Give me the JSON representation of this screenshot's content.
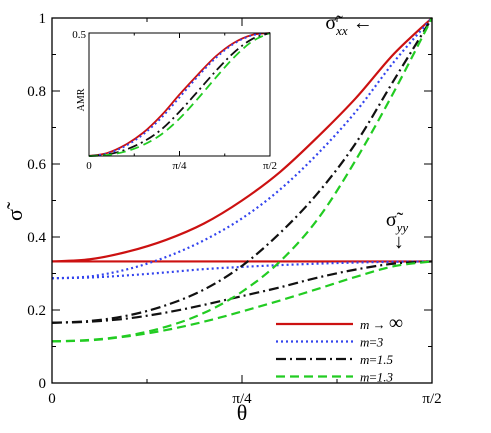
{
  "chart_data": [
    {
      "type": "line",
      "xlabel": "θ",
      "ylabel": "σ̃",
      "xlim": [
        0,
        1.5708
      ],
      "ylim": [
        0,
        1
      ],
      "x_ticks": [
        {
          "value": 0,
          "label": "0"
        },
        {
          "value": 0.7854,
          "label": "π/4"
        },
        {
          "value": 1.5708,
          "label": "π/2"
        }
      ],
      "y_ticks": [
        {
          "value": 0,
          "label": "0"
        },
        {
          "value": 0.2,
          "label": "0.2"
        },
        {
          "value": 0.4,
          "label": "0.4"
        },
        {
          "value": 0.6,
          "label": "0.6"
        },
        {
          "value": 0.8,
          "label": "0.8"
        },
        {
          "value": 1,
          "label": "1"
        }
      ],
      "grid": false,
      "legend_position": "bottom-right",
      "annotations": [
        {
          "text": "σ̃xx ←",
          "base": "σ̃",
          "sub": "xx",
          "arrow": "←",
          "x": 1.13,
          "y": 0.97
        },
        {
          "text": "σ̃yy ↓",
          "base": "σ̃",
          "sub": "yy",
          "arrow": "↓",
          "x": 1.38,
          "y": 0.43
        }
      ],
      "series": [
        {
          "name": "m → ∞",
          "name_base": "m",
          "name_value": "∞",
          "name_sep": " → ",
          "color": "#cc1111",
          "dash": "solid",
          "group": "xx",
          "x": [
            0,
            0.1571,
            0.3142,
            0.4712,
            0.6283,
            0.7854,
            0.9425,
            1.0996,
            1.2566,
            1.4137,
            1.5708
          ],
          "y": [
            0.333,
            0.339,
            0.36,
            0.392,
            0.437,
            0.5,
            0.578,
            0.675,
            0.781,
            0.902,
            1.0
          ]
        },
        {
          "name": "m → ∞",
          "name_base": "m",
          "name_value": "∞",
          "name_sep": " → ",
          "color": "#cc1111",
          "dash": "solid",
          "group": "yy",
          "x": [
            0,
            0.1571,
            0.3142,
            0.4712,
            0.6283,
            0.7854,
            0.9425,
            1.0996,
            1.2566,
            1.4137,
            1.5708
          ],
          "y": [
            0.333,
            0.333,
            0.333,
            0.333,
            0.333,
            0.333,
            0.333,
            0.333,
            0.333,
            0.333,
            0.333
          ]
        },
        {
          "name": "m=3",
          "name_base": "m",
          "name_value": "3",
          "name_sep": "=",
          "color": "#3344ee",
          "dash": "dot",
          "group": "xx",
          "x": [
            0,
            0.1571,
            0.3142,
            0.4712,
            0.6283,
            0.7854,
            0.9425,
            1.0996,
            1.2566,
            1.4137,
            1.5708
          ],
          "y": [
            0.287,
            0.292,
            0.312,
            0.345,
            0.391,
            0.451,
            0.53,
            0.629,
            0.744,
            0.88,
            1.0
          ]
        },
        {
          "name": "m=3",
          "name_base": "m",
          "name_value": "3",
          "name_sep": "=",
          "color": "#3344ee",
          "dash": "dot",
          "group": "yy",
          "x": [
            0,
            0.1571,
            0.3142,
            0.4712,
            0.6283,
            0.7854,
            0.9425,
            1.0996,
            1.2566,
            1.4137,
            1.5708
          ],
          "y": [
            0.287,
            0.289,
            0.295,
            0.303,
            0.312,
            0.318,
            0.323,
            0.327,
            0.33,
            0.332,
            0.333
          ]
        },
        {
          "name": "m=1.5",
          "name_base": "m",
          "name_value": "1.5",
          "name_sep": "=",
          "color": "#111111",
          "dash": "dashdot",
          "group": "xx",
          "x": [
            0,
            0.1571,
            0.3142,
            0.4712,
            0.6283,
            0.7854,
            0.9425,
            1.0996,
            1.2566,
            1.4137,
            1.5708
          ],
          "y": [
            0.165,
            0.17,
            0.185,
            0.213,
            0.256,
            0.321,
            0.411,
            0.521,
            0.658,
            0.83,
            1.0
          ]
        },
        {
          "name": "m=1.5",
          "name_base": "m",
          "name_value": "1.5",
          "name_sep": "=",
          "color": "#111111",
          "dash": "dashdot",
          "group": "yy",
          "x": [
            0,
            0.1571,
            0.3142,
            0.4712,
            0.6283,
            0.7854,
            0.9425,
            1.0996,
            1.2566,
            1.4137,
            1.5708
          ],
          "y": [
            0.165,
            0.168,
            0.177,
            0.193,
            0.214,
            0.238,
            0.262,
            0.289,
            0.311,
            0.327,
            0.333
          ]
        },
        {
          "name": "m=1.3",
          "name_base": "m",
          "name_value": "1.3",
          "name_sep": "=",
          "color": "#22cc22",
          "dash": "dash",
          "group": "xx",
          "x": [
            0,
            0.1571,
            0.3142,
            0.4712,
            0.6283,
            0.7854,
            0.9425,
            1.0996,
            1.2566,
            1.4137,
            1.5708
          ],
          "y": [
            0.114,
            0.118,
            0.13,
            0.154,
            0.192,
            0.25,
            0.333,
            0.45,
            0.612,
            0.798,
            1.0
          ]
        },
        {
          "name": "m=1.3",
          "name_base": "m",
          "name_value": "1.3",
          "name_sep": "=",
          "color": "#22cc22",
          "dash": "dash",
          "group": "yy",
          "x": [
            0,
            0.1571,
            0.3142,
            0.4712,
            0.6283,
            0.7854,
            0.9425,
            1.0996,
            1.2566,
            1.4137,
            1.5708
          ],
          "y": [
            0.114,
            0.117,
            0.128,
            0.145,
            0.168,
            0.196,
            0.226,
            0.258,
            0.291,
            0.32,
            0.333
          ]
        }
      ]
    },
    {
      "type": "line",
      "xlabel": "",
      "ylabel": "AMR",
      "xlim": [
        0,
        1.5708
      ],
      "ylim": [
        0,
        0.5
      ],
      "x_ticks": [
        {
          "value": 0,
          "label": "0"
        },
        {
          "value": 0.7854,
          "label": "π/4"
        },
        {
          "value": 1.5708,
          "label": "π/2"
        }
      ],
      "y_ticks": [
        {
          "value": 0.5,
          "label": "0.5"
        }
      ],
      "grid": false,
      "series": [
        {
          "name": "m → ∞",
          "color": "#cc1111",
          "dash": "solid",
          "x": [
            0,
            0.1571,
            0.3142,
            0.4712,
            0.6283,
            0.7854,
            0.9425,
            1.0996,
            1.2566,
            1.4137,
            1.5708
          ],
          "y": [
            0,
            0.012,
            0.045,
            0.095,
            0.165,
            0.25,
            0.33,
            0.405,
            0.46,
            0.492,
            0.5
          ]
        },
        {
          "name": "m=3",
          "color": "#3344ee",
          "dash": "dot",
          "x": [
            0,
            0.1571,
            0.3142,
            0.4712,
            0.6283,
            0.7854,
            0.9425,
            1.0996,
            1.2566,
            1.4137,
            1.5708
          ],
          "y": [
            0,
            0.01,
            0.04,
            0.088,
            0.155,
            0.238,
            0.322,
            0.398,
            0.456,
            0.49,
            0.5
          ]
        },
        {
          "name": "m=1.5",
          "color": "#111111",
          "dash": "dashdot",
          "x": [
            0,
            0.1571,
            0.3142,
            0.4712,
            0.6283,
            0.7854,
            0.9425,
            1.0996,
            1.2566,
            1.4137,
            1.5708
          ],
          "y": [
            0,
            0.006,
            0.025,
            0.058,
            0.108,
            0.18,
            0.262,
            0.345,
            0.42,
            0.475,
            0.5
          ]
        },
        {
          "name": "m=1.3",
          "color": "#22cc22",
          "dash": "dash",
          "x": [
            0,
            0.1571,
            0.3142,
            0.4712,
            0.6283,
            0.7854,
            0.9425,
            1.0996,
            1.2566,
            1.4137,
            1.5708
          ],
          "y": [
            0,
            0.004,
            0.018,
            0.045,
            0.088,
            0.152,
            0.232,
            0.318,
            0.4,
            0.465,
            0.5
          ]
        }
      ]
    }
  ]
}
